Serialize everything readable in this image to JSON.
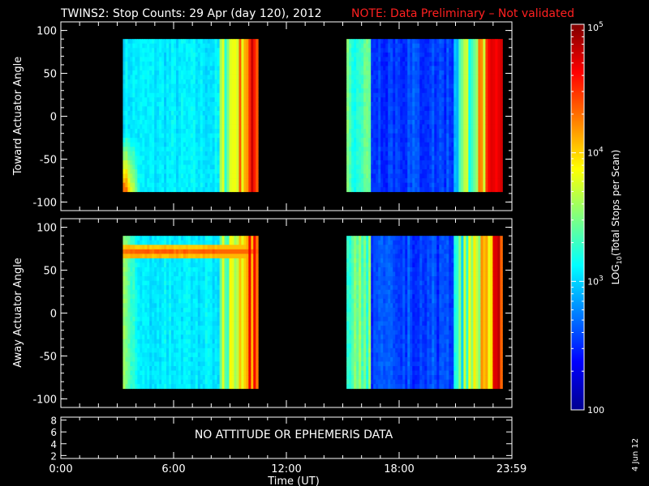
{
  "title": "TWINS2: Stop Counts: 29 Apr (day 120), 2012",
  "note": "NOTE: Data Preliminary – Not validated",
  "colors": {
    "title": "#ffffff",
    "note": "#ff2020",
    "background": "#000000",
    "axes": "#ffffff"
  },
  "chart_data": [
    {
      "type": "heatmap",
      "panel": "toward",
      "ylabel": "Toward Actuator Angle",
      "ylim": [
        -110,
        110
      ],
      "yticks": [
        100,
        50,
        0,
        -50,
        -100
      ],
      "xlim": [
        0,
        24
      ],
      "data_hours": [
        [
          3.3,
          10.5
        ],
        [
          15.2,
          23.5
        ]
      ],
      "angle_range": [
        -88,
        90
      ]
    },
    {
      "type": "heatmap",
      "panel": "away",
      "ylabel": "Away Actuator Angle",
      "ylim": [
        -110,
        110
      ],
      "yticks": [
        100,
        50,
        0,
        -50,
        -100
      ],
      "xlim": [
        0,
        24
      ],
      "data_hours": [
        [
          3.3,
          10.5
        ],
        [
          15.2,
          23.5
        ]
      ],
      "angle_range": [
        -88,
        90
      ]
    },
    {
      "type": "table",
      "panel": "ephemeris",
      "ylim": [
        1.5,
        8.5
      ],
      "yticks": [
        8,
        6,
        4,
        2
      ],
      "message": "NO ATTITUDE OR EPHEMERIS DATA"
    }
  ],
  "xaxis": {
    "label": "Time (UT)",
    "ticks": [
      {
        "hour": 0,
        "label": "0:00"
      },
      {
        "hour": 6,
        "label": "6:00"
      },
      {
        "hour": 12,
        "label": "12:00"
      },
      {
        "hour": 18,
        "label": "18:00"
      },
      {
        "hour": 23.983,
        "label": "23:59"
      }
    ]
  },
  "colorbar": {
    "label": "LOG10(Total Stops per Scan)",
    "label_main": "LOG",
    "label_sub": "10",
    "label_rest": "(Total Stops per Scan)",
    "scale": "log",
    "range": [
      100,
      100000
    ],
    "ticks": [
      {
        "value": 100000,
        "base": "10",
        "exp": "5"
      },
      {
        "value": 10000,
        "base": "10",
        "exp": "4"
      },
      {
        "value": 1000,
        "base": "10",
        "exp": "3"
      },
      {
        "value": 100,
        "base": "100",
        "exp": ""
      }
    ]
  },
  "date_stamp": "4 Jun 12"
}
